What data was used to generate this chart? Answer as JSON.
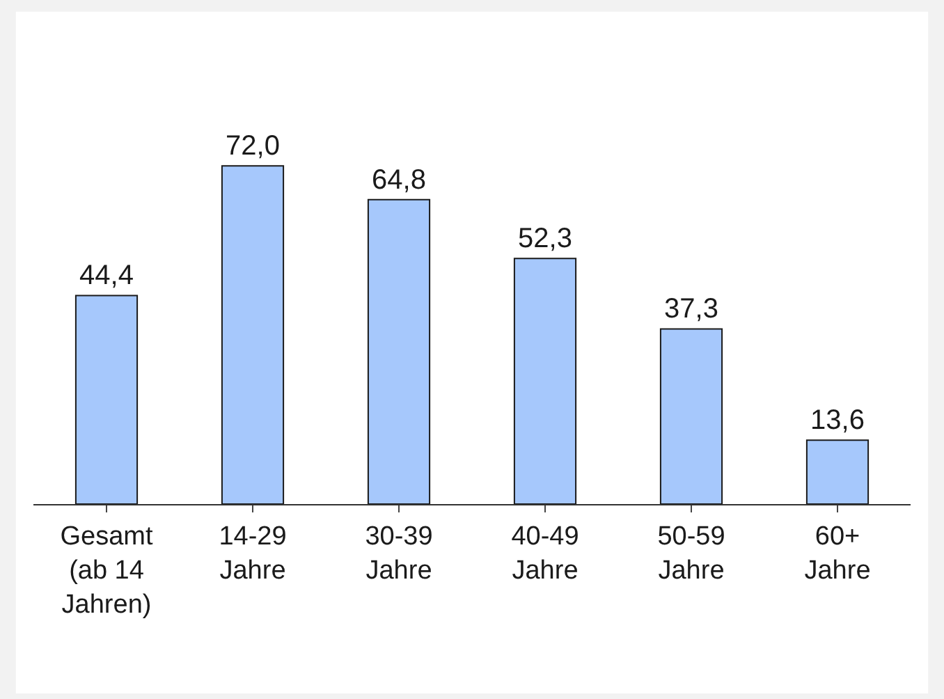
{
  "chart_data": {
    "type": "bar",
    "categories": [
      "Gesamt\n(ab 14\nJahren)",
      "14-29\nJahre",
      "30-39\nJahre",
      "40-49\nJahre",
      "50-59\nJahre",
      "60+\nJahre"
    ],
    "values": [
      44.4,
      72.0,
      64.8,
      52.3,
      37.3,
      13.6
    ],
    "value_labels": [
      "44,4",
      "72,0",
      "64,8",
      "52,3",
      "37,3",
      "13,6"
    ],
    "color": "#a6c8fc"
  }
}
